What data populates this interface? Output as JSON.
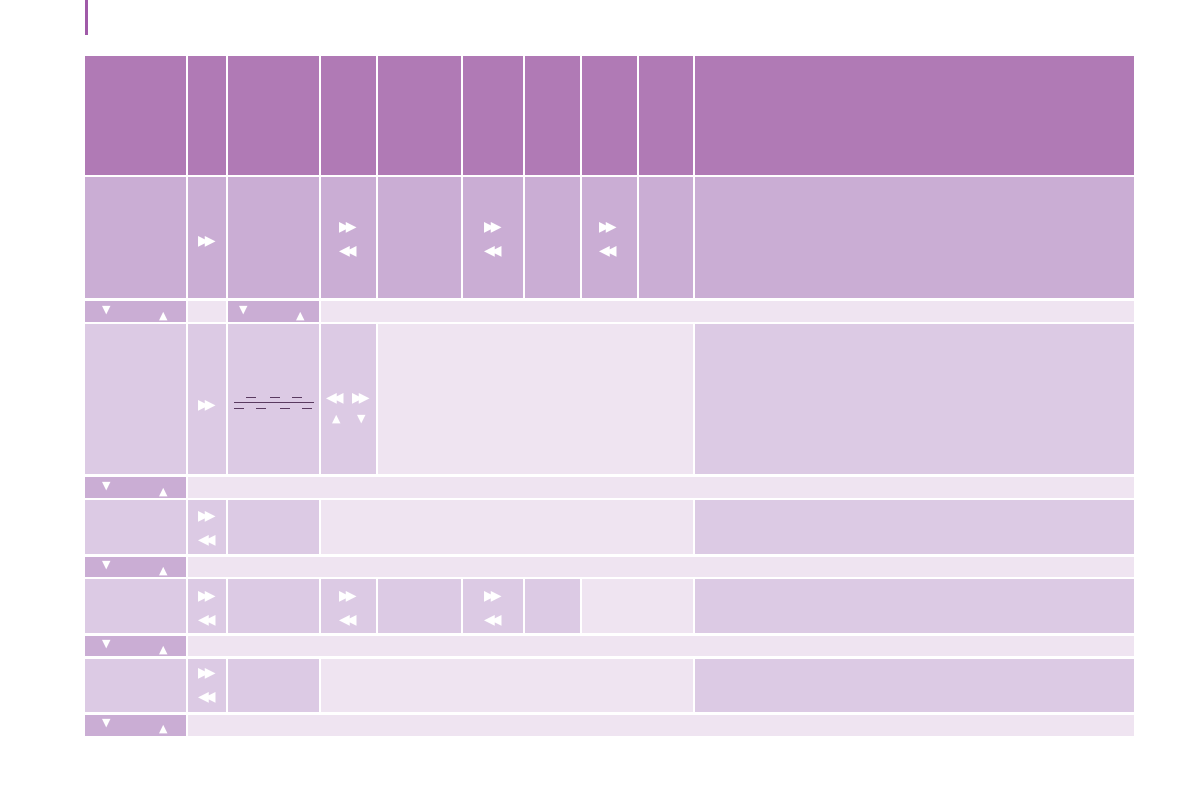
{
  "colors": {
    "accent": "#a05aa8",
    "header": "#b07ab5",
    "mid": "#caadd4",
    "light": "#dccae4",
    "pale": "#efe4f1",
    "row_bar": "#caadd4"
  },
  "icons": {
    "forward": "fast-forward-icon",
    "rewind": "rewind-icon",
    "down": "triangle-down-icon",
    "up": "triangle-up-icon",
    "dashes": "dashed-lines-icon"
  }
}
